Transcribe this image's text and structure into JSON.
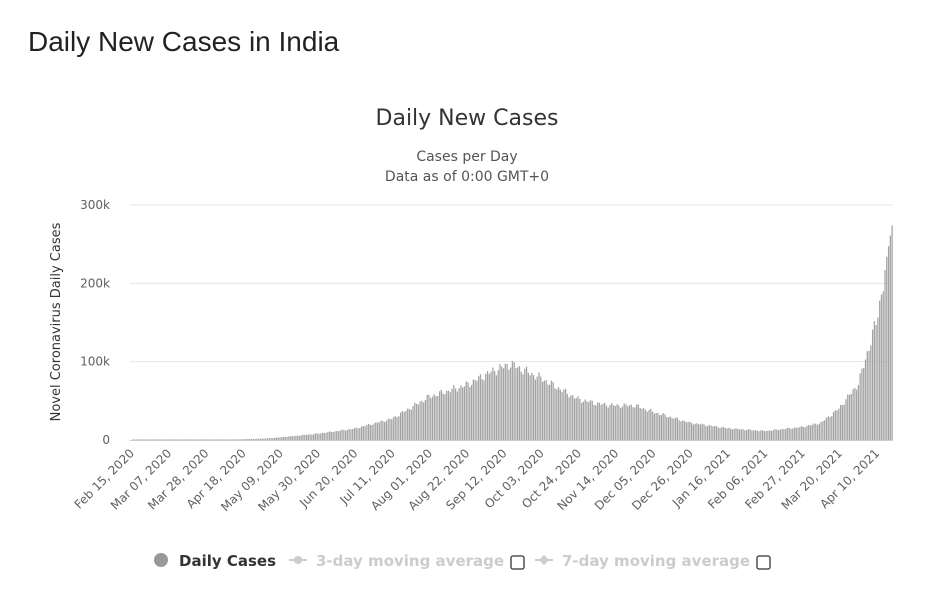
{
  "page": {
    "heading": "Daily New Cases in India"
  },
  "colors": {
    "bar": "#a3a3a3",
    "grid": "#e6e6e6",
    "inactive": "#cccccc",
    "legend_active": "#333333",
    "marker": "#999999"
  },
  "chart_data": {
    "type": "bar",
    "title": "Daily New Cases",
    "subtitle_lines": [
      "Cases per Day",
      "Data as of 0:00 GMT+0"
    ],
    "ylabel": "Novel Coronavirus Daily Cases",
    "xlabel": "",
    "ylim": [
      0,
      300000
    ],
    "yticks": [
      {
        "value": 0,
        "label": "0"
      },
      {
        "value": 100000,
        "label": "100k"
      },
      {
        "value": 200000,
        "label": "200k"
      },
      {
        "value": 300000,
        "label": "300k"
      }
    ],
    "x_start": "2020-02-15",
    "x_end": "2021-04-19",
    "xticks": [
      "Feb 15, 2020",
      "Mar 07, 2020",
      "Mar 28, 2020",
      "Apr 18, 2020",
      "May 09, 2020",
      "May 30, 2020",
      "Jun 20, 2020",
      "Jul 11, 2020",
      "Aug 01, 2020",
      "Aug 22, 2020",
      "Sep 12, 2020",
      "Oct 03, 2020",
      "Oct 24, 2020",
      "Nov 14, 2020",
      "Dec 05, 2020",
      "Dec 26, 2020",
      "Jan 16, 2021",
      "Feb 06, 2021",
      "Feb 27, 2021",
      "Mar 20, 2021",
      "Apr 10, 2021"
    ],
    "grid": true,
    "legend_position": "bottom",
    "series": [
      {
        "name": "Daily Cases",
        "active": true,
        "keypoints": [
          [
            "2020-02-15",
            0
          ],
          [
            "2020-03-15",
            20
          ],
          [
            "2020-04-01",
            300
          ],
          [
            "2020-04-18",
            1000
          ],
          [
            "2020-05-01",
            1900
          ],
          [
            "2020-05-09",
            3300
          ],
          [
            "2020-05-30",
            8000
          ],
          [
            "2020-06-20",
            14500
          ],
          [
            "2020-07-11",
            27000
          ],
          [
            "2020-08-01",
            55000
          ],
          [
            "2020-08-22",
            70000
          ],
          [
            "2020-09-05",
            87000
          ],
          [
            "2020-09-16",
            97000
          ],
          [
            "2020-10-03",
            79000
          ],
          [
            "2020-10-24",
            52000
          ],
          [
            "2020-11-05",
            46000
          ],
          [
            "2020-11-14",
            44000
          ],
          [
            "2020-11-25",
            44000
          ],
          [
            "2020-12-05",
            36000
          ],
          [
            "2020-12-26",
            22000
          ],
          [
            "2021-01-16",
            15000
          ],
          [
            "2021-02-06",
            11500
          ],
          [
            "2021-02-27",
            16500
          ],
          [
            "2021-03-10",
            22000
          ],
          [
            "2021-03-20",
            40000
          ],
          [
            "2021-03-31",
            72000
          ],
          [
            "2021-04-10",
            150000
          ],
          [
            "2021-04-14",
            200000
          ],
          [
            "2021-04-16",
            234000
          ],
          [
            "2021-04-18",
            261000
          ],
          [
            "2021-04-19",
            274000
          ]
        ]
      },
      {
        "name": "3-day moving average",
        "active": false
      },
      {
        "name": "7-day moving average",
        "active": false
      }
    ]
  }
}
